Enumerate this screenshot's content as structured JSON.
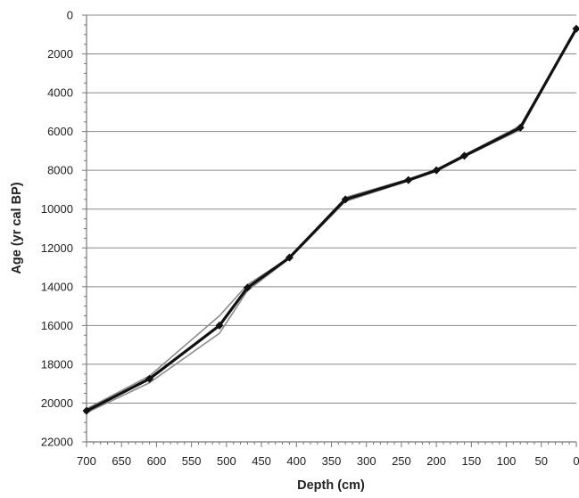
{
  "chart_data": {
    "type": "line",
    "title": "",
    "xlabel": "Depth (cm)",
    "ylabel": "Age (yr cal BP)",
    "xlim": [
      700,
      0
    ],
    "ylim": [
      0,
      22000
    ],
    "x_reversed": true,
    "y_reversed": true,
    "grid": "horizontal",
    "legend": "none",
    "x_ticks": [
      700,
      650,
      600,
      550,
      500,
      450,
      400,
      350,
      300,
      250,
      200,
      150,
      100,
      50,
      0
    ],
    "x_tick_labels": [
      "700",
      "650",
      "600",
      "550",
      "500",
      "450",
      "400",
      "350",
      "300",
      "250",
      "200",
      "150",
      "100",
      "50",
      "0"
    ],
    "y_ticks": [
      0,
      2000,
      4000,
      6000,
      8000,
      10000,
      12000,
      14000,
      16000,
      18000,
      20000,
      22000
    ],
    "y_tick_labels": [
      "0",
      "2000",
      "4000",
      "6000",
      "8000",
      "10000",
      "12000",
      "14000",
      "16000",
      "18000",
      "20000",
      "22000"
    ],
    "series": [
      {
        "role": "upper-bound",
        "color": "#8c8c8c",
        "x": [
          700,
          610,
          510,
          470,
          410,
          330,
          240,
          200,
          160,
          80,
          0
        ],
        "y": [
          20300,
          18600,
          15500,
          13900,
          12500,
          9400,
          8450,
          7950,
          7200,
          5700,
          700
        ]
      },
      {
        "role": "lower-bound",
        "color": "#8c8c8c",
        "x": [
          700,
          610,
          510,
          470,
          410,
          330,
          240,
          200,
          160,
          80,
          0
        ],
        "y": [
          20500,
          18950,
          16400,
          14200,
          12550,
          9600,
          8550,
          8050,
          7300,
          5900,
          700
        ]
      },
      {
        "role": "median",
        "color": "#111111",
        "markers": "diamond",
        "x": [
          700,
          610,
          510,
          470,
          410,
          330,
          240,
          200,
          160,
          80,
          0
        ],
        "y": [
          20400,
          18750,
          16000,
          14050,
          12500,
          9500,
          8500,
          8000,
          7250,
          5800,
          700
        ]
      }
    ]
  }
}
